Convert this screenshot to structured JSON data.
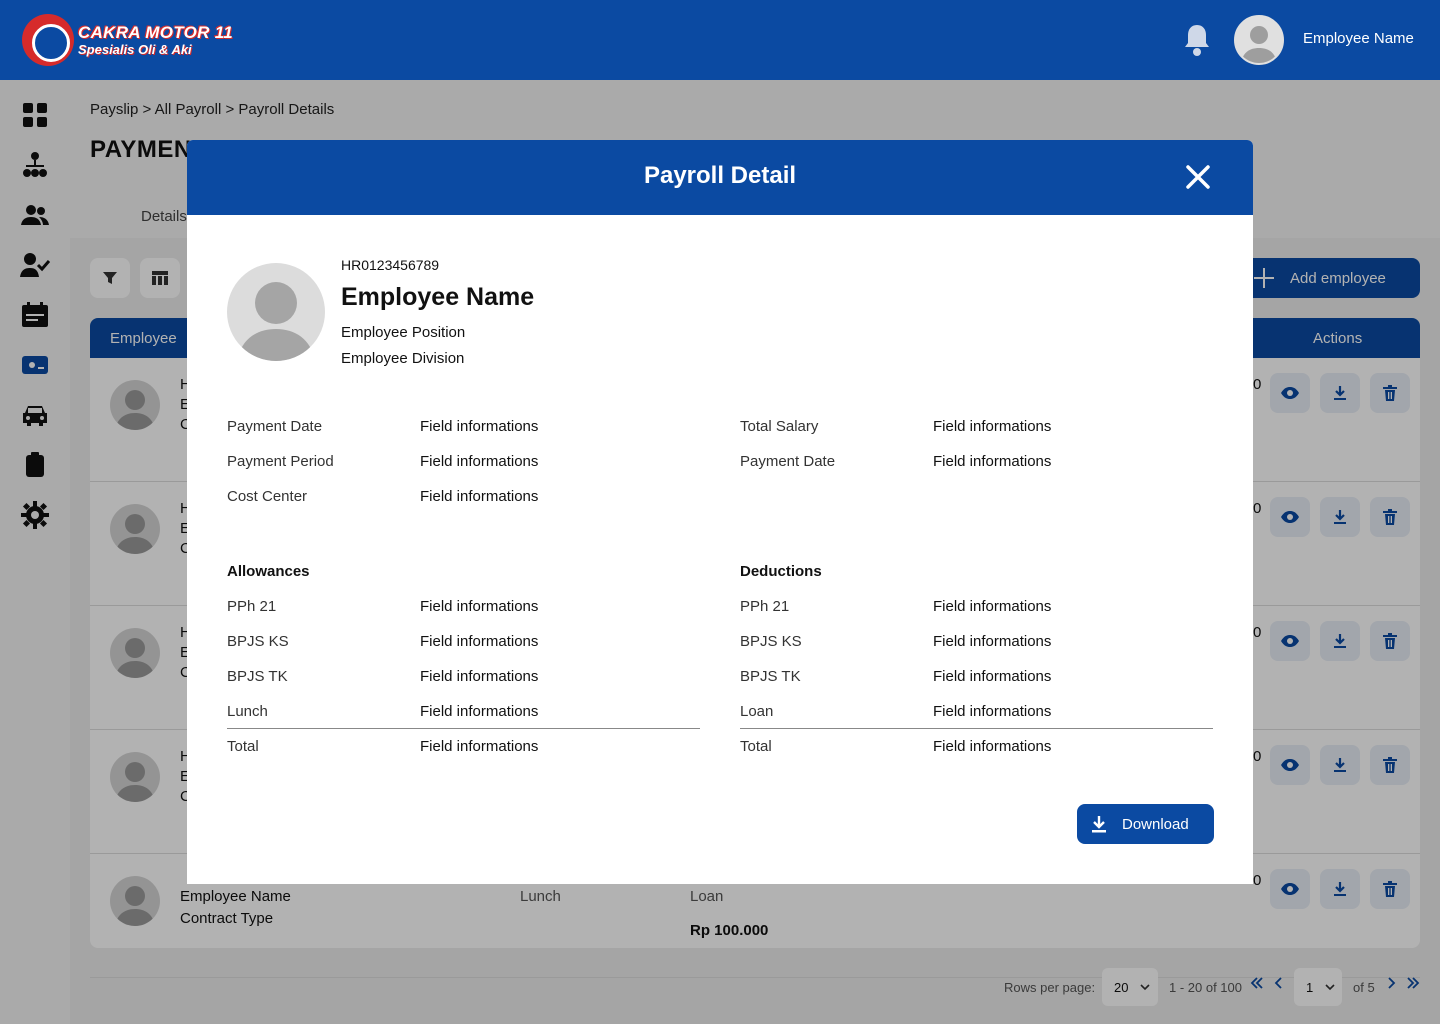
{
  "brand": {
    "title": "CAKRA MOTOR 11",
    "subtitle": "Spesialis Oli & Aki"
  },
  "header": {
    "user_name": "Employee Name"
  },
  "sidebar": {
    "items": [
      "dashboard-icon",
      "organization-icon",
      "users-icon",
      "user-check-icon",
      "calendar-icon",
      "payroll-icon",
      "car-icon",
      "clipboard-icon",
      "settings-icon"
    ]
  },
  "breadcrumb": "Payslip > All Payroll > Payroll Details",
  "page": {
    "title": "PAYMEN",
    "tab": "Details"
  },
  "toolbar": {
    "add_label": "Add employee"
  },
  "table": {
    "col_employee": "Employee",
    "col_actions": "Actions",
    "row_fragments": [
      "H",
      "E",
      "C"
    ],
    "row_cut": "0",
    "last_row": {
      "name": "Employee Name",
      "contract": "Contract Type",
      "lunch": "Lunch",
      "loan": "Loan",
      "loan_value": "Rp 100.000"
    }
  },
  "pagination": {
    "rows_label": "Rows per page:",
    "rows_value": "20",
    "range": "1 - 20 of 100",
    "page_value": "1",
    "of_pages": "of 5"
  },
  "modal": {
    "title": "Payroll Detail",
    "employee": {
      "id": "HR0123456789",
      "name": "Employee Name",
      "position": "Employee Position",
      "division": "Employee Division"
    },
    "info_left": [
      {
        "label": "Payment Date",
        "value": "Field informations"
      },
      {
        "label": "Payment Period",
        "value": "Field informations"
      },
      {
        "label": "Cost Center",
        "value": "Field informations"
      }
    ],
    "info_right": [
      {
        "label": "Total Salary",
        "value": "Field informations"
      },
      {
        "label": "Payment Date",
        "value": "Field informations"
      }
    ],
    "allowances": {
      "title": "Allowances",
      "items": [
        {
          "label": "PPh 21",
          "value": "Field informations"
        },
        {
          "label": "BPJS KS",
          "value": "Field informations"
        },
        {
          "label": "BPJS TK",
          "value": "Field informations"
        },
        {
          "label": "Lunch",
          "value": "Field informations"
        }
      ],
      "total_label": "Total",
      "total_value": "Field informations"
    },
    "deductions": {
      "title": "Deductions",
      "items": [
        {
          "label": "PPh 21",
          "value": "Field informations"
        },
        {
          "label": "BPJS KS",
          "value": "Field informations"
        },
        {
          "label": "BPJS TK",
          "value": "Field informations"
        },
        {
          "label": "Loan",
          "value": "Field informations"
        }
      ],
      "total_label": "Total",
      "total_value": "Field informations"
    },
    "download_label": "Download"
  },
  "colors": {
    "primary": "#0b4aa2",
    "accent_red": "#d62b2b",
    "background": "#f4f4f4"
  }
}
